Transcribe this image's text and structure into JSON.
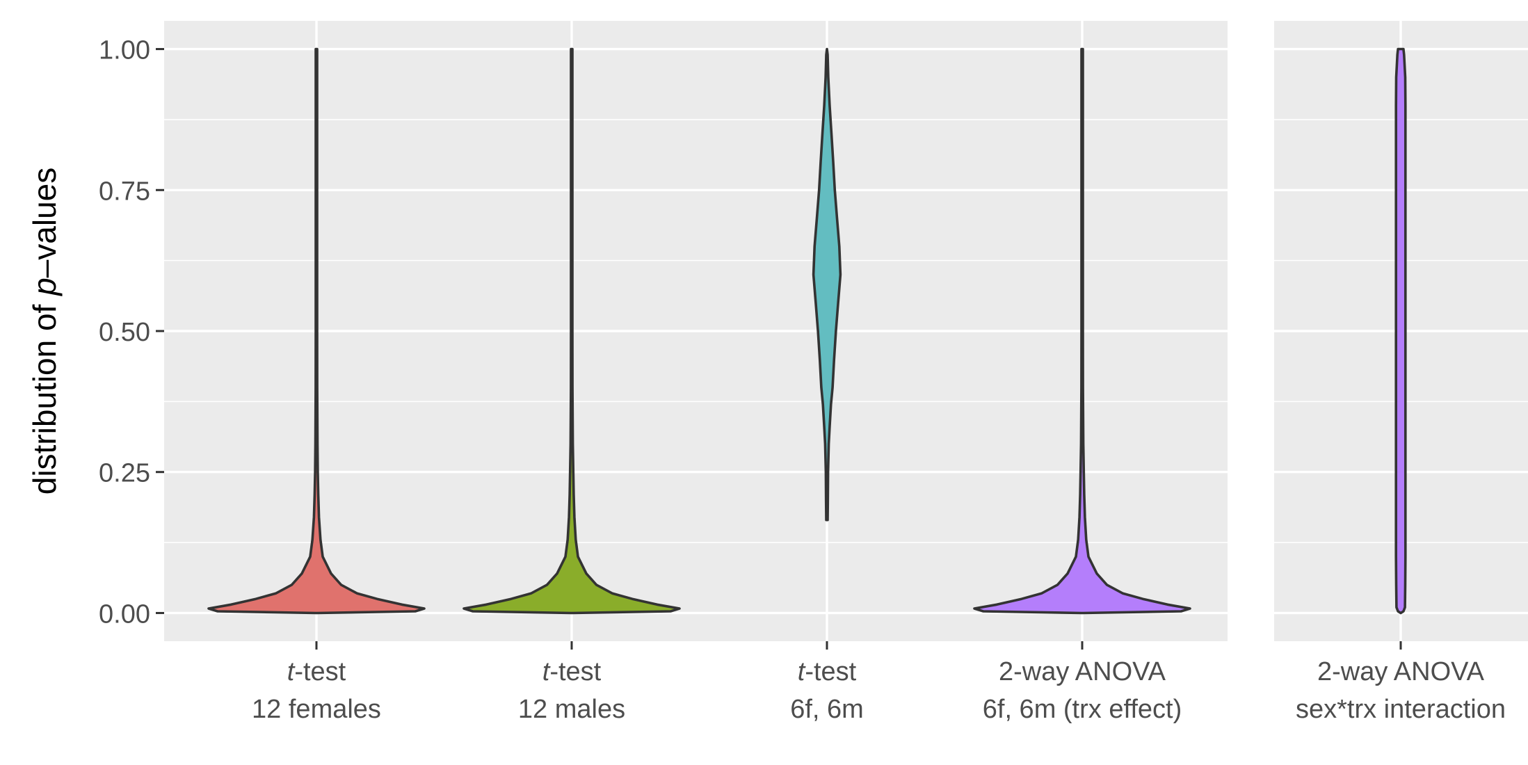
{
  "chart_data": {
    "type": "violin",
    "ylabel": {
      "prefix": "distribution of ",
      "italic": "p",
      "suffix": "–values"
    },
    "ylim": [
      -0.05,
      1.05
    ],
    "y_ticks": [
      {
        "value": 0.0,
        "label": "0.00"
      },
      {
        "value": 0.25,
        "label": "0.25"
      },
      {
        "value": 0.5,
        "label": "0.50"
      },
      {
        "value": 0.75,
        "label": "0.75"
      },
      {
        "value": 1.0,
        "label": "1.00"
      }
    ],
    "y_minor": [
      0.125,
      0.375,
      0.625,
      0.875
    ],
    "panels": [
      {
        "id": "panel-main",
        "groups": [
          {
            "id": "t-test-12-females",
            "label_line1_italic": "t",
            "label_line1_rest": "-test",
            "label_line2": "12 females",
            "color": "#E0726D",
            "density": [
              [
                0.0,
                0.0
              ],
              [
                0.003,
                0.44
              ],
              [
                0.008,
                0.48
              ],
              [
                0.015,
                0.38
              ],
              [
                0.025,
                0.27
              ],
              [
                0.035,
                0.18
              ],
              [
                0.05,
                0.11
              ],
              [
                0.07,
                0.065
              ],
              [
                0.1,
                0.028
              ],
              [
                0.13,
                0.018
              ],
              [
                0.17,
                0.011
              ],
              [
                0.21,
                0.008
              ],
              [
                0.25,
                0.006
              ],
              [
                0.3,
                0.0045
              ],
              [
                0.4,
                0.0035
              ],
              [
                0.5,
                0.003
              ],
              [
                0.6,
                0.003
              ],
              [
                0.7,
                0.003
              ],
              [
                0.8,
                0.003
              ],
              [
                0.9,
                0.003
              ],
              [
                1.0,
                0.003
              ]
            ]
          },
          {
            "id": "t-test-12-males",
            "label_line1_italic": "t",
            "label_line1_rest": "-test",
            "label_line2": "12 males",
            "color": "#8AAD2A",
            "density": [
              [
                0.0,
                0.0
              ],
              [
                0.003,
                0.44
              ],
              [
                0.008,
                0.48
              ],
              [
                0.015,
                0.38
              ],
              [
                0.025,
                0.27
              ],
              [
                0.035,
                0.18
              ],
              [
                0.05,
                0.11
              ],
              [
                0.07,
                0.065
              ],
              [
                0.1,
                0.028
              ],
              [
                0.13,
                0.018
              ],
              [
                0.17,
                0.012
              ],
              [
                0.21,
                0.009
              ],
              [
                0.25,
                0.007
              ],
              [
                0.3,
                0.005
              ],
              [
                0.4,
                0.0035
              ],
              [
                0.5,
                0.003
              ],
              [
                0.6,
                0.003
              ],
              [
                0.7,
                0.003
              ],
              [
                0.8,
                0.003
              ],
              [
                0.9,
                0.003
              ],
              [
                1.0,
                0.003
              ]
            ]
          },
          {
            "id": "t-test-6f-6m",
            "label_line1_italic": "t",
            "label_line1_rest": "-test",
            "label_line2": "6f, 6m",
            "color": "#63BDC1",
            "density": [
              [
                0.165,
                0.003
              ],
              [
                0.2,
                0.004
              ],
              [
                0.25,
                0.005
              ],
              [
                0.3,
                0.008
              ],
              [
                0.33,
                0.012
              ],
              [
                0.37,
                0.018
              ],
              [
                0.4,
                0.025
              ],
              [
                0.45,
                0.032
              ],
              [
                0.5,
                0.04
              ],
              [
                0.55,
                0.05
              ],
              [
                0.6,
                0.06
              ],
              [
                0.65,
                0.055
              ],
              [
                0.7,
                0.045
              ],
              [
                0.75,
                0.035
              ],
              [
                0.8,
                0.028
              ],
              [
                0.85,
                0.02
              ],
              [
                0.9,
                0.012
              ],
              [
                0.95,
                0.006
              ],
              [
                0.99,
                0.003
              ],
              [
                1.0,
                0.0
              ]
            ]
          },
          {
            "id": "2-way-anova-trx-effect",
            "label_line1": "2-way ANOVA",
            "label_line2": "6f, 6m (trx effect)",
            "color": "#B47EFB",
            "density": [
              [
                0.0,
                0.0
              ],
              [
                0.003,
                0.44
              ],
              [
                0.008,
                0.48
              ],
              [
                0.015,
                0.38
              ],
              [
                0.025,
                0.27
              ],
              [
                0.035,
                0.18
              ],
              [
                0.05,
                0.11
              ],
              [
                0.07,
                0.065
              ],
              [
                0.1,
                0.028
              ],
              [
                0.13,
                0.018
              ],
              [
                0.17,
                0.012
              ],
              [
                0.21,
                0.009
              ],
              [
                0.25,
                0.007
              ],
              [
                0.3,
                0.005
              ],
              [
                0.4,
                0.0035
              ],
              [
                0.5,
                0.003
              ],
              [
                0.6,
                0.003
              ],
              [
                0.7,
                0.003
              ],
              [
                0.8,
                0.003
              ],
              [
                0.9,
                0.003
              ],
              [
                1.0,
                0.003
              ]
            ]
          }
        ]
      },
      {
        "id": "panel-interaction",
        "groups": [
          {
            "id": "2-way-anova-interaction",
            "label_line1": "2-way ANOVA",
            "label_line2": "sex*trx interaction",
            "color": "#B47EFB",
            "density": [
              [
                0.0,
                0.0
              ],
              [
                0.003,
                0.012
              ],
              [
                0.01,
                0.019
              ],
              [
                0.05,
                0.02
              ],
              [
                0.1,
                0.021
              ],
              [
                0.5,
                0.021
              ],
              [
                0.9,
                0.021
              ],
              [
                0.95,
                0.02
              ],
              [
                0.99,
                0.015
              ],
              [
                1.0,
                0.012
              ]
            ]
          }
        ]
      }
    ]
  }
}
